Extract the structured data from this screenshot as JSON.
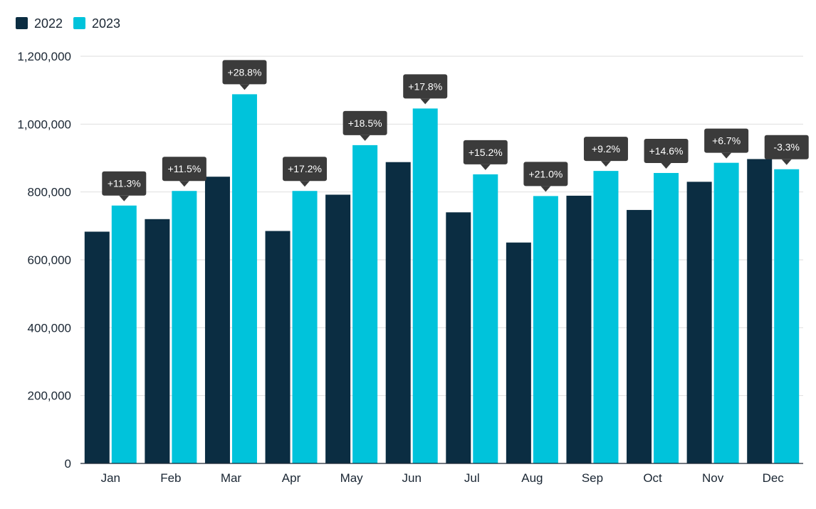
{
  "chart_data": {
    "type": "bar",
    "categories": [
      "Jan",
      "Feb",
      "Mar",
      "Apr",
      "May",
      "Jun",
      "Jul",
      "Aug",
      "Sep",
      "Oct",
      "Nov",
      "Dec"
    ],
    "series": [
      {
        "name": "2022",
        "color": "#0b2d42",
        "values": [
          683000,
          720000,
          845000,
          685000,
          792000,
          888000,
          740000,
          651000,
          789000,
          747000,
          830000,
          897000
        ]
      },
      {
        "name": "2023",
        "color": "#00c3db",
        "values": [
          760000,
          803000,
          1088000,
          803000,
          938000,
          1046000,
          852000,
          788000,
          862000,
          856000,
          886000,
          867000
        ]
      }
    ],
    "annotations": [
      "+11.3%",
      "+11.5%",
      "+28.8%",
      "+17.2%",
      "+18.5%",
      "+17.8%",
      "+15.2%",
      "+21.0%",
      "+9.2%",
      "+14.6%",
      "+6.7%",
      "-3.3%"
    ],
    "yticks": [
      "0",
      "200,000",
      "400,000",
      "600,000",
      "800,000",
      "1,000,000",
      "1,200,000"
    ],
    "ylim": [
      0,
      1200000
    ],
    "grid": true,
    "legend_position": "top-left",
    "badge_color": "#3b3b3b"
  }
}
